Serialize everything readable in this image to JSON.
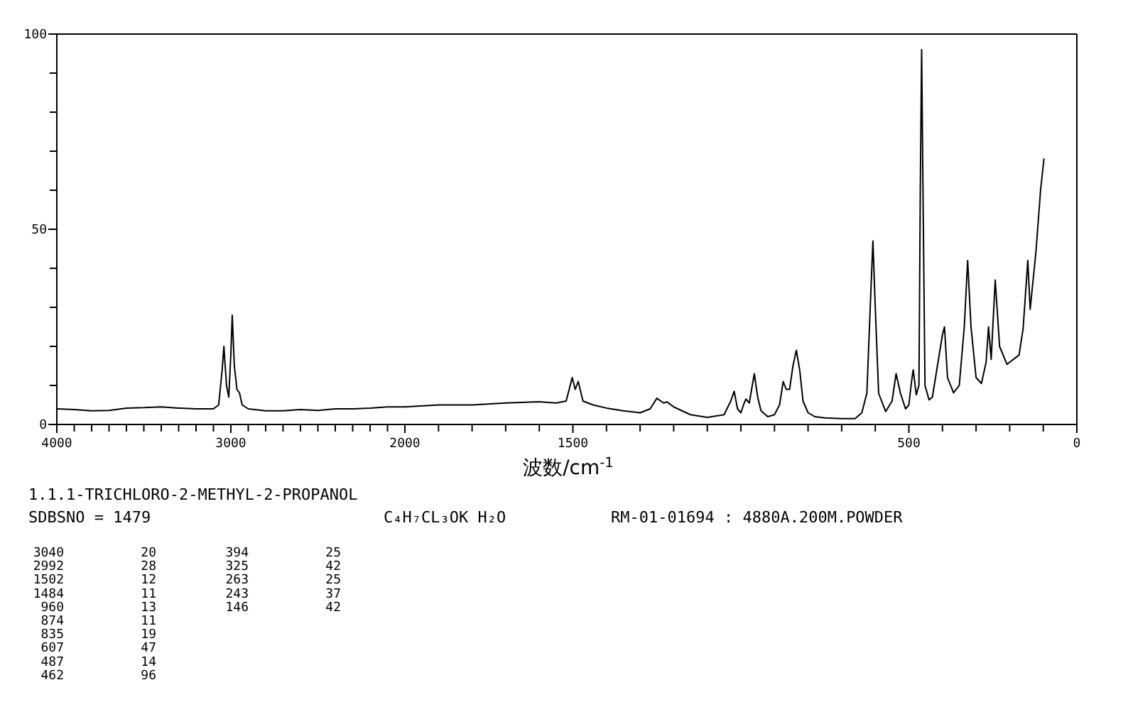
{
  "chart_data": [
    {
      "type": "line",
      "title": "1.1.1-TRICHLORO-2-METHYL-2-PROPANOL",
      "x": [
        4000,
        3900,
        3800,
        3700,
        3600,
        3500,
        3400,
        3300,
        3200,
        3100,
        3070,
        3050,
        3040,
        3025,
        3012,
        3000,
        2992,
        2980,
        2965,
        2950,
        2935,
        2900,
        2800,
        2700,
        2600,
        2500,
        2400,
        2300,
        2200,
        2100,
        2000
      ],
      "values": [
        4,
        3.8,
        3.5,
        3.6,
        4.2,
        4.3,
        4.5,
        4.2,
        4,
        4,
        5,
        14,
        20,
        10,
        7,
        18,
        28,
        15,
        9,
        8,
        5,
        4,
        3.5,
        3.5,
        3.8,
        3.6,
        4,
        4,
        4.2,
        4.5,
        4.5
      ],
      "color": "#000000",
      "xlim": [
        4000,
        2000
      ],
      "xticks": [
        4000,
        {
          "value": 3900,
          "label": null
        },
        {
          "value": 3800,
          "label": null
        },
        {
          "value": 3700,
          "label": null
        },
        {
          "value": 3600,
          "label": null
        },
        {
          "value": 3500,
          "label": null
        },
        {
          "value": 3400,
          "label": null
        },
        {
          "value": 3300,
          "label": null
        },
        {
          "value": 3200,
          "label": null
        },
        {
          "value": 3100,
          "label": null
        },
        3000,
        {
          "value": 2900,
          "label": null
        },
        {
          "value": 2800,
          "label": null
        },
        {
          "value": 2700,
          "label": null
        },
        {
          "value": 2600,
          "label": null
        },
        {
          "value": 2500,
          "label": null
        },
        {
          "value": 2400,
          "label": null
        },
        {
          "value": 2300,
          "label": null
        },
        {
          "value": 2200,
          "label": null
        },
        {
          "value": 2100,
          "label": null
        },
        2000
      ],
      "ylim": [
        0,
        100
      ],
      "yticks": [
        0,
        {
          "value": 10,
          "label": null
        },
        {
          "value": 20,
          "label": null
        },
        {
          "value": 30,
          "label": null
        },
        {
          "value": 40,
          "label": null
        },
        50,
        {
          "value": 60,
          "label": null
        },
        {
          "value": 70,
          "label": null
        },
        {
          "value": 80,
          "label": null
        },
        {
          "value": 90,
          "label": null
        },
        100
      ],
      "annotations": [
        "SDBSNO = 1479",
        "C₄H₇CL₃OK H₂O",
        "RM-01-01694 : 4880A.200M.POWDER",
        "3040",
        "20",
        "2992",
        "28",
        "1502",
        "12",
        "1484",
        "11",
        "960",
        "13",
        "874",
        "11",
        "835",
        "19",
        "607",
        "47",
        "487",
        "14",
        "462",
        "96",
        "394",
        "25",
        "325",
        "42",
        "263",
        "25",
        "243",
        "37",
        "146",
        "42"
      ]
    },
    {
      "type": "line",
      "xlabel": "波数/cm$^{-1}$",
      "tick_labels": "x",
      "x": [
        2000,
        1900,
        1800,
        1700,
        1600,
        1550,
        1520,
        1502,
        1493,
        1484,
        1470,
        1440,
        1400,
        1350,
        1300,
        1270,
        1250,
        1230,
        1220,
        1200,
        1150,
        1100,
        1050,
        1030,
        1020,
        1010,
        1000,
        990,
        985,
        975,
        960,
        950,
        940,
        920,
        900,
        885,
        874,
        865,
        855,
        845,
        835,
        825,
        815,
        800,
        780,
        750,
        700,
        660,
        640,
        625,
        615,
        607,
        600,
        590,
        569,
        550,
        538,
        525,
        510,
        500,
        492,
        487,
        478,
        470,
        466,
        462,
        458,
        452,
        440,
        430,
        415,
        400,
        394,
        385,
        367,
        350,
        335,
        325,
        315,
        300,
        284,
        270,
        263,
        255,
        243,
        230,
        208,
        172,
        160,
        146,
        139,
        122,
        108,
        98
      ],
      "values": [
        4.5,
        5,
        5,
        5.5,
        5.8,
        5.5,
        6,
        12,
        9,
        11,
        6,
        5,
        4.2,
        3.5,
        3,
        4,
        6.7,
        5.5,
        5.8,
        4.5,
        2.5,
        1.8,
        2.5,
        6,
        8.5,
        4,
        3,
        5.5,
        6.5,
        5.5,
        13,
        7,
        3.5,
        2,
        2.5,
        5,
        11,
        9,
        9,
        15,
        19,
        14,
        6,
        3,
        2,
        1.7,
        1.5,
        1.5,
        3,
        8,
        30,
        47,
        30,
        8,
        3.3,
        6,
        13,
        8,
        4,
        5,
        11,
        14,
        7.6,
        10,
        60,
        96,
        60,
        10,
        6.3,
        7,
        15,
        23,
        25,
        12,
        8.1,
        10,
        25,
        42,
        25,
        12,
        10.5,
        16,
        25,
        16.7,
        37,
        20,
        15.4,
        17.8,
        24.5,
        42,
        29.5,
        44,
        60,
        68
      ],
      "color": "#000000",
      "xlim": [
        2000,
        0
      ],
      "xticks": [
        {
          "value": 2000,
          "label": null
        },
        {
          "value": 1900,
          "label": null
        },
        {
          "value": 1800,
          "label": null
        },
        {
          "value": 1700,
          "label": null
        },
        {
          "value": 1600,
          "label": null
        },
        1500,
        {
          "value": 1400,
          "label": null
        },
        {
          "value": 1300,
          "label": null
        },
        {
          "value": 1200,
          "label": null
        },
        {
          "value": 1100,
          "label": null
        },
        {
          "value": 1000,
          "label": null
        },
        {
          "value": 900,
          "label": null
        },
        {
          "value": 800,
          "label": null
        },
        {
          "value": 700,
          "label": null
        },
        {
          "value": 600,
          "label": null
        },
        500,
        {
          "value": 400,
          "label": null
        },
        {
          "value": 300,
          "label": null
        },
        {
          "value": 200,
          "label": null
        },
        {
          "value": 100,
          "label": null
        },
        0
      ],
      "ylim": [
        0,
        100
      ]
    }
  ]
}
